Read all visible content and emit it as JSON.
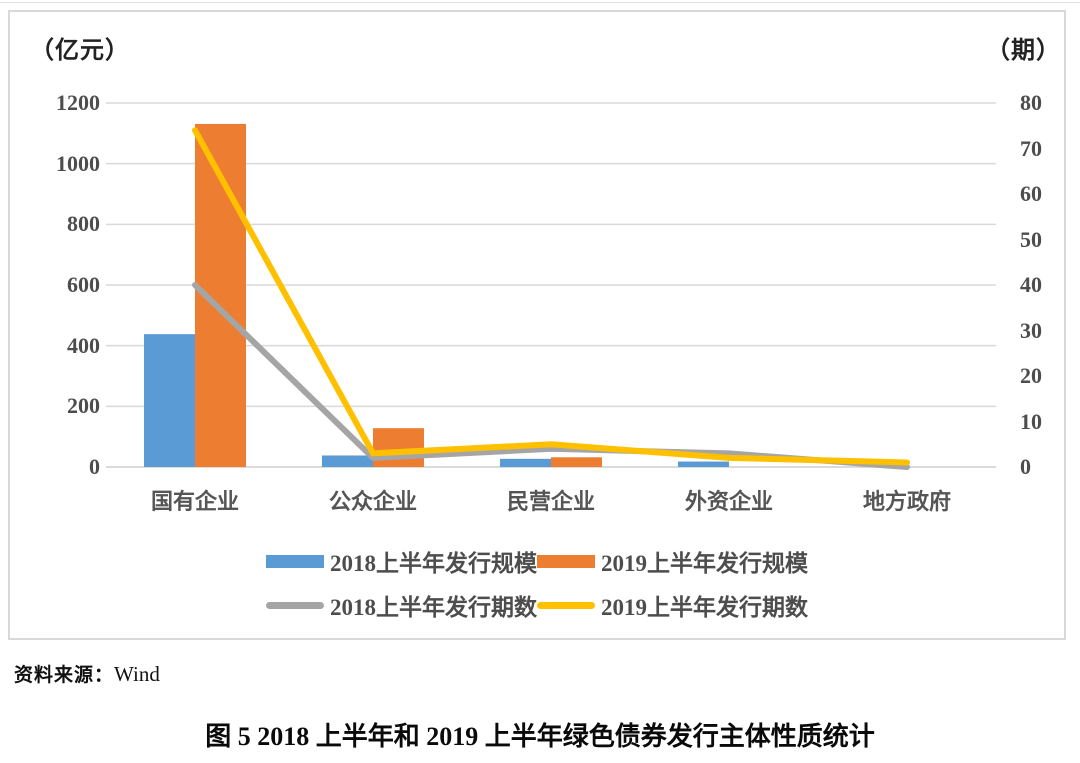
{
  "page": {
    "source_label": "资料来源：",
    "source_value": "Wind",
    "caption": "图 5  2018 上半年和 2019 上半年绿色债券发行主体性质统计"
  },
  "chart_data": {
    "type": "bar",
    "subtype": "clustered bars with two overlay lines (dual axis combo)",
    "title": "图 5  2018 上半年和 2019 上半年绿色债券发行主体性质统计",
    "categories": [
      "国有企业",
      "公众企业",
      "民营企业",
      "外资企业",
      "地方政府"
    ],
    "left_axis": {
      "unit": "（亿元）",
      "min": 0,
      "max": 1200,
      "step": 200,
      "ticks": [
        1200,
        1000,
        800,
        600,
        400,
        200,
        0
      ]
    },
    "right_axis": {
      "unit": "（期）",
      "min": 0,
      "max": 80,
      "step": 10,
      "ticks": [
        80,
        70,
        60,
        50,
        40,
        30,
        20,
        10,
        0
      ]
    },
    "series": [
      {
        "name": "2018上半年发行规模",
        "type": "bar",
        "axis": "left",
        "color": "#5B9BD5",
        "values": [
          438,
          38,
          27,
          18,
          0
        ]
      },
      {
        "name": "2019上半年发行规模",
        "type": "bar",
        "axis": "left",
        "color": "#ED7D31",
        "values": [
          1131,
          128,
          32,
          0,
          0
        ]
      },
      {
        "name": "2018上半年发行期数",
        "type": "line",
        "axis": "right",
        "color": "#A5A5A5",
        "values": [
          40,
          2,
          4,
          3,
          0
        ]
      },
      {
        "name": "2019上半年发行期数",
        "type": "line",
        "axis": "right",
        "color": "#FFC000",
        "values": [
          74,
          3,
          5,
          2,
          1
        ]
      }
    ],
    "grid": "horizontal gridlines at left-axis ticks",
    "grid_color": "#d9d9d9",
    "legend_position": "bottom"
  }
}
